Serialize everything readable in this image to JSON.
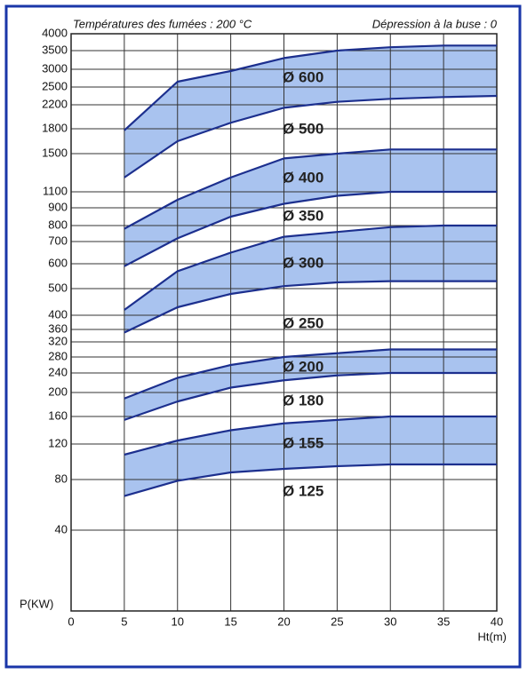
{
  "chart_data": {
    "type": "band",
    "header_left": "Températures des fumées : 200 °C",
    "header_right": "Dépression à la buse : 0",
    "y_label": "P(KW)",
    "x_label": "Ht(m)",
    "x": [
      5,
      10,
      15,
      20,
      25,
      30,
      35,
      40
    ],
    "xlim": [
      0,
      40
    ],
    "xticks": [
      0,
      5,
      10,
      15,
      20,
      25,
      30,
      35,
      40
    ],
    "ylim": [
      0,
      4000
    ],
    "yticks": [
      4000,
      3500,
      3000,
      2500,
      2200,
      1800,
      1500,
      1100,
      900,
      800,
      700,
      600,
      500,
      400,
      360,
      320,
      280,
      240,
      200,
      160,
      120,
      80,
      40
    ],
    "grid": true,
    "band_color": "#a9c3ef",
    "line_color": "#1c2f8e",
    "bands": [
      {
        "upper": [
          1780,
          2650,
          2950,
          3300,
          3500,
          3600,
          3650,
          3650
        ],
        "lower": [
          1250,
          1650,
          1900,
          2150,
          2250,
          2300,
          2330,
          2350
        ]
      },
      {
        "upper": [
          780,
          1000,
          1250,
          1450,
          1500,
          1550,
          1550,
          1550
        ],
        "lower": [
          590,
          720,
          850,
          950,
          1050,
          1100,
          1100,
          1100
        ]
      },
      {
        "upper": [
          420,
          570,
          650,
          730,
          760,
          790,
          800,
          800
        ],
        "lower": [
          350,
          430,
          480,
          510,
          525,
          530,
          530,
          530
        ]
      },
      {
        "upper": [
          190,
          230,
          260,
          280,
          290,
          300,
          300,
          300
        ],
        "lower": [
          155,
          185,
          210,
          225,
          235,
          240,
          240,
          240
        ]
      },
      {
        "upper": [
          108,
          125,
          140,
          150,
          155,
          160,
          160,
          160
        ],
        "lower": [
          67,
          79,
          88,
          92,
          95,
          97,
          97,
          97
        ]
      }
    ],
    "annotations": [
      "Ø 600",
      "Ø 500",
      "Ø 400",
      "Ø 350",
      "Ø 300",
      "Ø 250",
      "Ø 200",
      "Ø 180",
      "Ø 155",
      "Ø 125"
    ]
  }
}
